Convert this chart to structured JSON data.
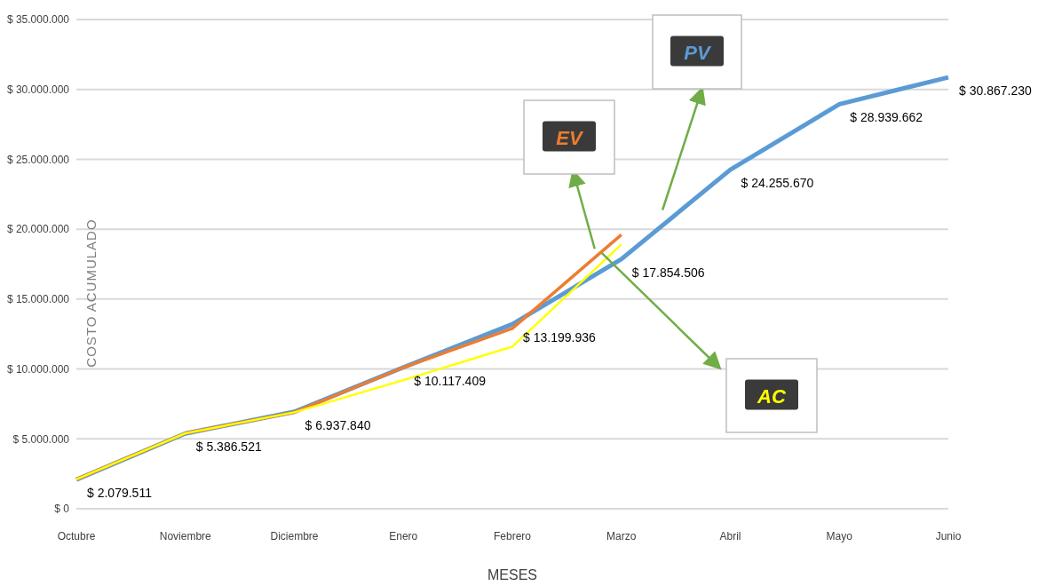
{
  "chart_data": {
    "type": "line",
    "xlabel": "MESES",
    "ylabel": "COSTO ACUMULADO",
    "categories": [
      "Octubre",
      "Noviembre",
      "Diciembre",
      "Enero",
      "Febrero",
      "Marzo",
      "Abril",
      "Mayo",
      "Junio"
    ],
    "series": [
      {
        "name": "PV",
        "color": "#5b9bd5",
        "values": [
          2079511,
          5386521,
          6937840,
          10117409,
          13199936,
          17854506,
          24255670,
          28939662,
          30867230
        ],
        "value_labels": [
          "$ 2.079.511",
          "$ 5.386.521",
          "$ 6.937.840",
          "$ 10.117.409",
          "$ 13.199.936",
          "$ 17.854.506",
          "$ 24.255.670",
          "$ 28.939.662",
          "$ 30.867.230"
        ]
      },
      {
        "name": "EV",
        "color": "#ed7d31",
        "values": [
          2100000,
          5400000,
          6900000,
          10100000,
          12900000,
          19600000,
          null,
          null,
          null
        ]
      },
      {
        "name": "AC",
        "color": "#ffff00",
        "values": [
          2100000,
          5400000,
          6900000,
          9200000,
          11600000,
          18900000,
          null,
          null,
          null
        ]
      }
    ],
    "ylim": [
      0,
      35000000
    ],
    "yticks": [
      {
        "value": 0,
        "label": "$ 0"
      },
      {
        "value": 5000000,
        "label": "$ 5.000.000"
      },
      {
        "value": 10000000,
        "label": "$ 10.000.000"
      },
      {
        "value": 15000000,
        "label": "$ 15.000.000"
      },
      {
        "value": 20000000,
        "label": "$ 20.000.000"
      },
      {
        "value": 25000000,
        "label": "$ 25.000.000"
      },
      {
        "value": 30000000,
        "label": "$ 30.000.000"
      },
      {
        "value": 35000000,
        "label": "$ 35.000.000"
      }
    ],
    "grid": "y",
    "legend": false,
    "marker": "none",
    "line_style": "solid"
  }
}
